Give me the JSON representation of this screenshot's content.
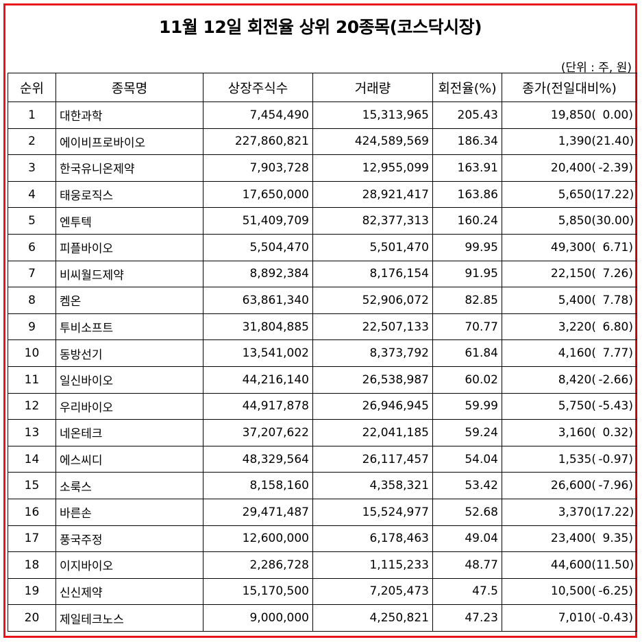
{
  "title": "11월 12일 회전율 상위 20종목(코스닥시장)",
  "unit_note": "(단위 : 주, 원)",
  "colors": {
    "frame_border": "#e8141b",
    "grid_line": "#000000"
  },
  "headers": [
    "순위",
    "종목명",
    "상장주식수",
    "거래량",
    "회전율(%)",
    "종가(전일대비%)"
  ],
  "rows": [
    {
      "rank": "1",
      "name": "대한과학",
      "listed": "7,454,490",
      "volume": "15,313,965",
      "turnover": "205.43",
      "close": "19,850(",
      "change": "0.00)"
    },
    {
      "rank": "2",
      "name": "에이비프로바이오",
      "listed": "227,860,821",
      "volume": "424,589,569",
      "turnover": "186.34",
      "close": "1,390(",
      "change": "21.40)"
    },
    {
      "rank": "3",
      "name": "한국유니온제약",
      "listed": "7,903,728",
      "volume": "12,955,099",
      "turnover": "163.91",
      "close": "20,400(",
      "change": "-2.39)"
    },
    {
      "rank": "4",
      "name": "태웅로직스",
      "listed": "17,650,000",
      "volume": "28,921,417",
      "turnover": "163.86",
      "close": "5,650(",
      "change": "17.22)"
    },
    {
      "rank": "5",
      "name": "엔투텍",
      "listed": "51,409,709",
      "volume": "82,377,313",
      "turnover": "160.24",
      "close": "5,850(",
      "change": "30.00)"
    },
    {
      "rank": "6",
      "name": "피플바이오",
      "listed": "5,504,470",
      "volume": "5,501,470",
      "turnover": "99.95",
      "close": "49,300(",
      "change": "6.71)"
    },
    {
      "rank": "7",
      "name": "비씨월드제약",
      "listed": "8,892,384",
      "volume": "8,176,154",
      "turnover": "91.95",
      "close": "22,150(",
      "change": "7.26)"
    },
    {
      "rank": "8",
      "name": "켐온",
      "listed": "63,861,340",
      "volume": "52,906,072",
      "turnover": "82.85",
      "close": "5,400(",
      "change": "7.78)"
    },
    {
      "rank": "9",
      "name": "투비소프트",
      "listed": "31,804,885",
      "volume": "22,507,133",
      "turnover": "70.77",
      "close": "3,220(",
      "change": "6.80)"
    },
    {
      "rank": "10",
      "name": "동방선기",
      "listed": "13,541,002",
      "volume": "8,373,792",
      "turnover": "61.84",
      "close": "4,160(",
      "change": "7.77)"
    },
    {
      "rank": "11",
      "name": "일신바이오",
      "listed": "44,216,140",
      "volume": "26,538,987",
      "turnover": "60.02",
      "close": "8,420(",
      "change": "-2.66)"
    },
    {
      "rank": "12",
      "name": "우리바이오",
      "listed": "44,917,878",
      "volume": "26,946,945",
      "turnover": "59.99",
      "close": "5,750(",
      "change": "-5.43)"
    },
    {
      "rank": "13",
      "name": "네온테크",
      "listed": "37,207,622",
      "volume": "22,041,185",
      "turnover": "59.24",
      "close": "3,160(",
      "change": "0.32)"
    },
    {
      "rank": "14",
      "name": "에스씨디",
      "listed": "48,329,564",
      "volume": "26,117,457",
      "turnover": "54.04",
      "close": "1,535(",
      "change": "-0.97)"
    },
    {
      "rank": "15",
      "name": "소룩스",
      "listed": "8,158,160",
      "volume": "4,358,321",
      "turnover": "53.42",
      "close": "26,600(",
      "change": "-7.96)"
    },
    {
      "rank": "16",
      "name": "바른손",
      "listed": "29,471,487",
      "volume": "15,524,977",
      "turnover": "52.68",
      "close": "3,370(",
      "change": "17.22)"
    },
    {
      "rank": "17",
      "name": "풍국주정",
      "listed": "12,600,000",
      "volume": "6,178,463",
      "turnover": "49.04",
      "close": "23,400(",
      "change": "9.35)"
    },
    {
      "rank": "18",
      "name": "이지바이오",
      "listed": "2,286,728",
      "volume": "1,115,233",
      "turnover": "48.77",
      "close": "44,600(",
      "change": "11.50)"
    },
    {
      "rank": "19",
      "name": "신신제약",
      "listed": "15,170,500",
      "volume": "7,205,473",
      "turnover": "47.5",
      "close": "10,500(",
      "change": "-6.25)"
    },
    {
      "rank": "20",
      "name": "제일테크노스",
      "listed": "9,000,000",
      "volume": "4,250,821",
      "turnover": "47.23",
      "close": "7,010(",
      "change": "-0.43)"
    }
  ]
}
